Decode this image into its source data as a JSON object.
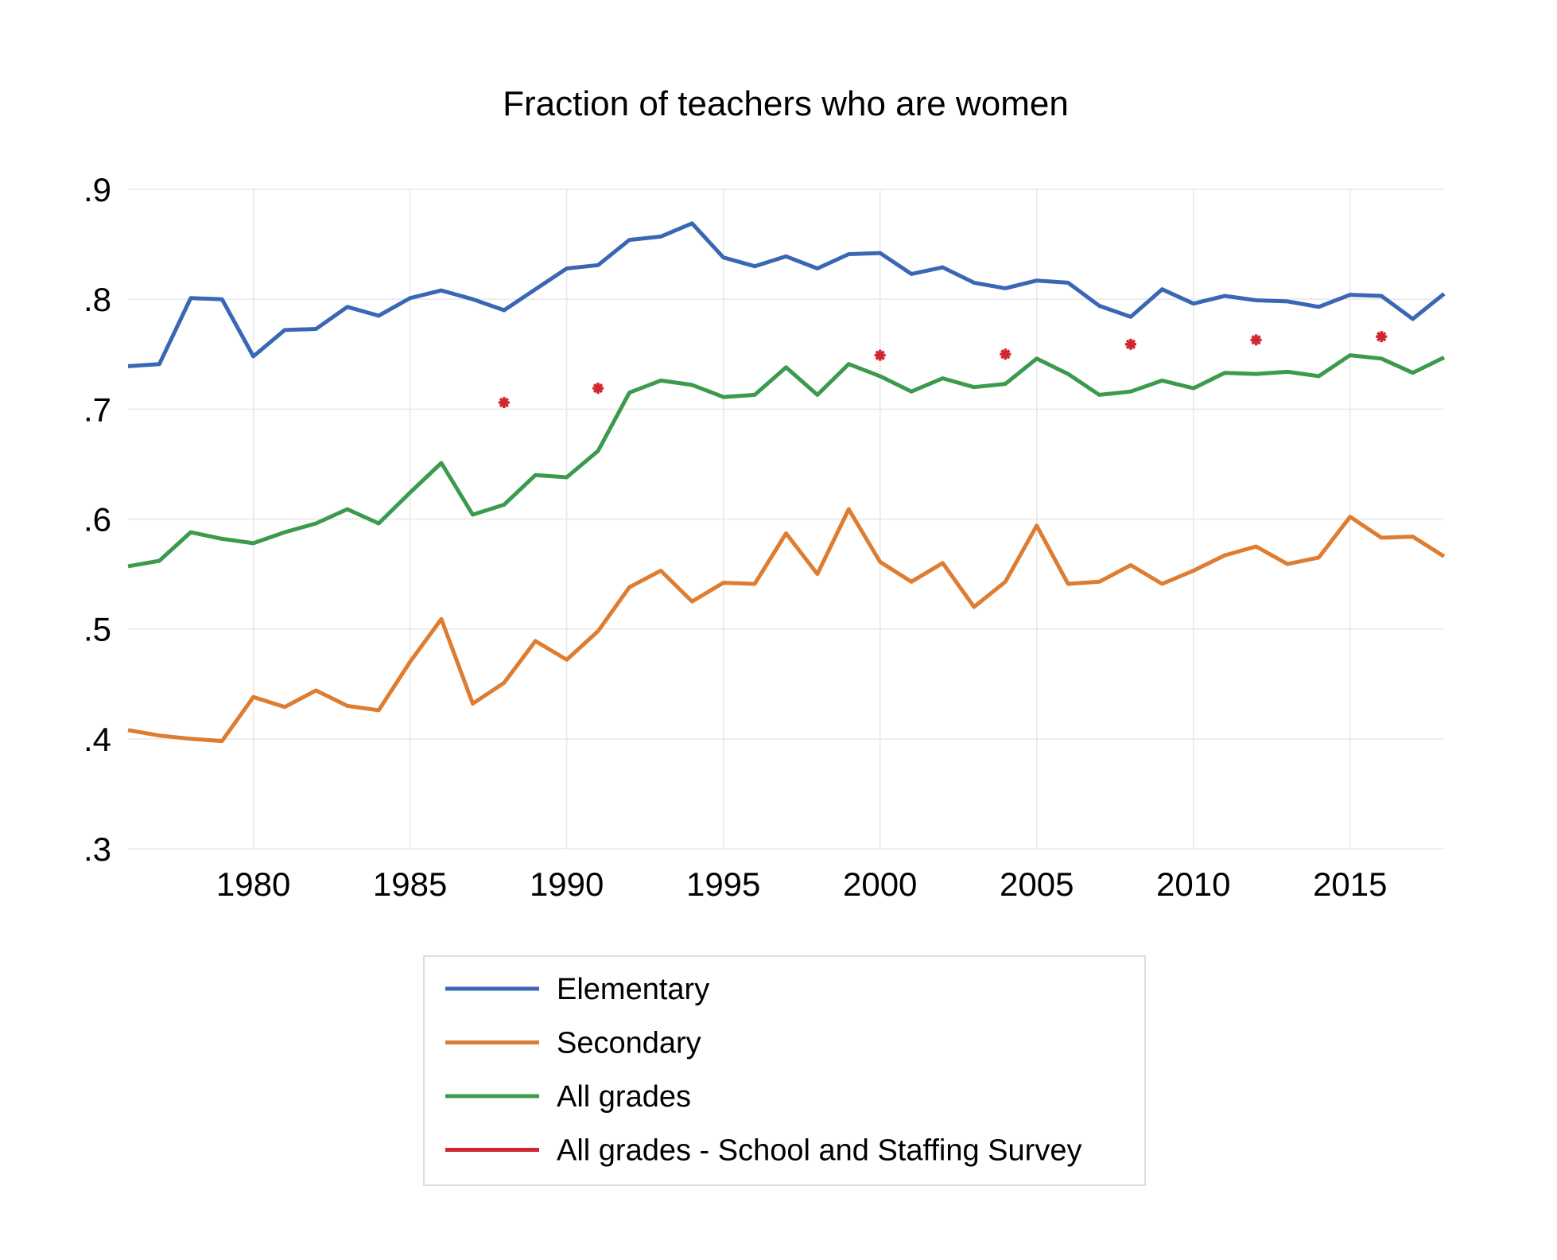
{
  "chart_data": {
    "type": "line",
    "title": "Fraction of teachers who are women",
    "xlabel": "",
    "ylabel": "",
    "xlim": [
      1976,
      2018
    ],
    "ylim": [
      0.3,
      0.9
    ],
    "x_ticks": [
      1980,
      1985,
      1990,
      1995,
      2000,
      2005,
      2010,
      2015
    ],
    "x_tick_labels": [
      "1980",
      "1985",
      "1990",
      "1995",
      "2000",
      "2005",
      "2010",
      "2015"
    ],
    "y_ticks": [
      0.3,
      0.4,
      0.5,
      0.6,
      0.7,
      0.8,
      0.9
    ],
    "y_tick_labels": [
      ".3",
      ".4",
      ".5",
      ".6",
      ".7",
      ".8",
      ".9"
    ],
    "grid": true,
    "legend_placement": "bottom",
    "x": [
      1976,
      1977,
      1978,
      1979,
      1980,
      1981,
      1982,
      1983,
      1984,
      1985,
      1986,
      1987,
      1988,
      1989,
      1990,
      1991,
      1992,
      1993,
      1994,
      1995,
      1996,
      1997,
      1998,
      1999,
      2000,
      2001,
      2002,
      2003,
      2004,
      2005,
      2006,
      2007,
      2008,
      2009,
      2010,
      2011,
      2012,
      2013,
      2014,
      2015,
      2016,
      2017,
      2018
    ],
    "series": [
      {
        "name": "Elementary",
        "color": "#3a67b4",
        "marker": "line",
        "values": [
          0.739,
          0.741,
          0.801,
          0.8,
          0.748,
          0.772,
          0.773,
          0.793,
          0.785,
          0.801,
          0.808,
          0.8,
          0.79,
          0.809,
          0.828,
          0.831,
          0.854,
          0.857,
          0.869,
          0.838,
          0.83,
          0.839,
          0.828,
          0.841,
          0.842,
          0.823,
          0.829,
          0.815,
          0.81,
          0.817,
          0.815,
          0.794,
          0.784,
          0.809,
          0.796,
          0.803,
          0.799,
          0.798,
          0.793,
          0.804,
          0.803,
          0.782,
          0.805
        ]
      },
      {
        "name": "Secondary",
        "color": "#de7c30",
        "marker": "line",
        "values": [
          0.408,
          0.403,
          0.4,
          0.398,
          0.438,
          0.429,
          0.444,
          0.43,
          0.426,
          0.47,
          0.509,
          0.432,
          0.451,
          0.489,
          0.472,
          0.498,
          0.538,
          0.553,
          0.525,
          0.542,
          0.541,
          0.587,
          0.55,
          0.609,
          0.561,
          0.543,
          0.56,
          0.52,
          0.543,
          0.594,
          0.541,
          0.543,
          0.558,
          0.541,
          0.553,
          0.567,
          0.575,
          0.559,
          0.565,
          0.602,
          0.583,
          0.584,
          0.566
        ]
      },
      {
        "name": "All grades",
        "color": "#3c9a4c",
        "marker": "line",
        "values": [
          0.557,
          0.562,
          0.588,
          0.582,
          0.578,
          0.588,
          0.596,
          0.609,
          0.596,
          0.624,
          0.651,
          0.604,
          0.613,
          0.64,
          0.638,
          0.662,
          0.715,
          0.726,
          0.722,
          0.711,
          0.713,
          0.738,
          0.713,
          0.741,
          0.73,
          0.716,
          0.728,
          0.72,
          0.723,
          0.746,
          0.732,
          0.713,
          0.716,
          0.726,
          0.719,
          0.733,
          0.732,
          0.734,
          0.73,
          0.749,
          0.746,
          0.733,
          0.747
        ]
      },
      {
        "name": "All grades - School and Staffing Survey",
        "color": "#d0262f",
        "marker": "star",
        "x": [
          1988,
          1991,
          2000,
          2004,
          2008,
          2012,
          2016
        ],
        "values": [
          0.706,
          0.719,
          0.749,
          0.75,
          0.759,
          0.763,
          0.766
        ]
      }
    ]
  }
}
